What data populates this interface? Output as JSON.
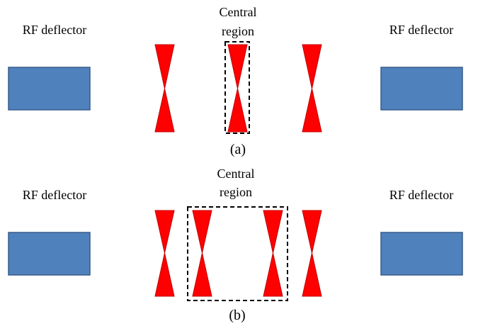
{
  "panel_a": {
    "rf_left_label": "RF deflector",
    "rf_right_label": "RF deflector",
    "central_line1": "Central",
    "central_line2": "region",
    "caption": "(a)"
  },
  "panel_b": {
    "rf_left_label": "RF deflector",
    "rf_right_label": "RF deflector",
    "central_line1": "Central",
    "central_line2": "region",
    "caption": "(b)"
  },
  "colors": {
    "deflector_fill": "#4f81bd",
    "deflector_stroke": "#385d8a",
    "bowtie_fill": "#ff0000",
    "bowtie_stroke": "#c00000"
  }
}
